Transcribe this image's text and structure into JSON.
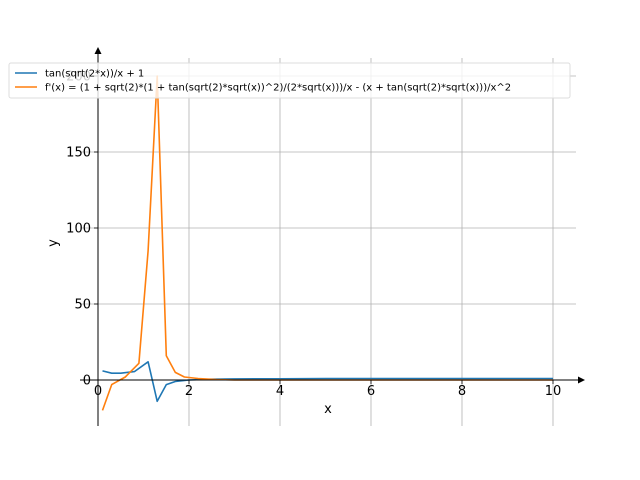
{
  "chart_data": {
    "type": "line",
    "xlabel": "x",
    "ylabel": "y",
    "xlim": [
      0,
      10.5
    ],
    "ylim": [
      -31,
      212
    ],
    "grid": true,
    "legend_position": "top-left",
    "x_ticks": [
      0,
      2,
      4,
      6,
      8,
      10
    ],
    "y_ticks": [
      0,
      50,
      100,
      150,
      200
    ],
    "x_tick_labels": [
      "0",
      "2",
      "4",
      "6",
      "8",
      "10"
    ],
    "y_tick_labels": [
      "0",
      "50",
      "100",
      "150",
      "200"
    ],
    "series": [
      {
        "name": "tan(sqrt(2*x))/x + 1",
        "color": "#1f77b4",
        "x": [
          0.1,
          0.3,
          0.5,
          0.8,
          1.1,
          1.3,
          1.5,
          1.7,
          2.0,
          2.5,
          3.0,
          4.0,
          5.0,
          6.0,
          7.0,
          8.0,
          9.0,
          10.0
        ],
        "y": [
          6,
          4.5,
          4.5,
          5.5,
          12,
          -14,
          -3,
          -1,
          0,
          0.5,
          0.7,
          0.8,
          0.9,
          0.9,
          0.9,
          0.9,
          1.0,
          1.0
        ]
      },
      {
        "name": "f'(x) = (1 + sqrt(2)*(1 + tan(sqrt(2)*sqrt(x))^2)/(2*sqrt(x)))/x - (x + tan(sqrt(2)*sqrt(x)))/x^2",
        "color": "#ff7f0e",
        "x": [
          0.1,
          0.3,
          0.6,
          0.9,
          1.1,
          1.3,
          1.5,
          1.7,
          1.9,
          2.2,
          2.6,
          3.0,
          4.0,
          5.0,
          6.0,
          7.0,
          8.0,
          9.0,
          10.0
        ],
        "y": [
          -20,
          -3,
          2,
          11,
          85,
          200,
          16,
          5,
          2,
          1,
          0.3,
          0,
          0,
          0,
          0,
          0,
          0,
          0,
          0
        ]
      }
    ]
  }
}
